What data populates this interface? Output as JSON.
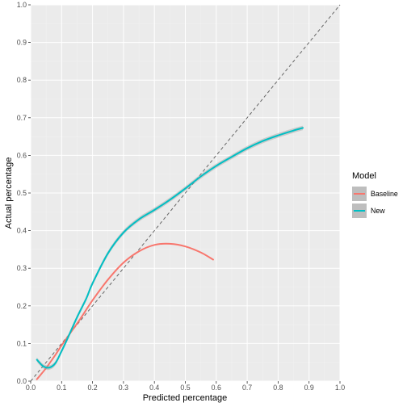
{
  "chart_data": {
    "type": "line",
    "xlabel": "Predicted percentage",
    "ylabel": "Actual percentage",
    "xlim": [
      0,
      1.0
    ],
    "ylim": [
      0,
      1.0
    ],
    "x_ticks": [
      "0.0",
      "0.1",
      "0.2",
      "0.3",
      "0.4",
      "0.5",
      "0.6",
      "0.7",
      "0.8",
      "0.9",
      "1.0"
    ],
    "y_ticks": [
      "0.0",
      "0.1",
      "0.2",
      "0.3",
      "0.4",
      "0.5",
      "0.6",
      "0.7",
      "0.8",
      "0.9",
      "1.0"
    ],
    "grid": true,
    "panel_background": "#ebebeb",
    "reference_line": {
      "style": "dashed",
      "from": [
        0,
        0
      ],
      "to": [
        1,
        1
      ],
      "color": "#666666"
    },
    "legend": {
      "title": "Model",
      "position": "right"
    },
    "series": [
      {
        "name": "Baseline",
        "color": "#f8766d",
        "x": [
          0.02,
          0.05,
          0.08,
          0.1,
          0.13,
          0.16,
          0.2,
          0.25,
          0.3,
          0.35,
          0.4,
          0.45,
          0.5,
          0.55,
          0.59
        ],
        "y": [
          0.005,
          0.035,
          0.07,
          0.095,
          0.13,
          0.165,
          0.215,
          0.27,
          0.315,
          0.345,
          0.362,
          0.365,
          0.358,
          0.342,
          0.323
        ]
      },
      {
        "name": "New",
        "color": "#00bfc4",
        "x": [
          0.02,
          0.04,
          0.06,
          0.08,
          0.1,
          0.12,
          0.15,
          0.18,
          0.2,
          0.25,
          0.3,
          0.35,
          0.4,
          0.45,
          0.5,
          0.55,
          0.6,
          0.65,
          0.7,
          0.75,
          0.8,
          0.85,
          0.88
        ],
        "y": [
          0.057,
          0.04,
          0.036,
          0.048,
          0.08,
          0.115,
          0.17,
          0.22,
          0.26,
          0.34,
          0.395,
          0.43,
          0.455,
          0.482,
          0.512,
          0.544,
          0.572,
          0.596,
          0.619,
          0.638,
          0.653,
          0.666,
          0.673
        ],
        "band": 0.006
      }
    ]
  }
}
